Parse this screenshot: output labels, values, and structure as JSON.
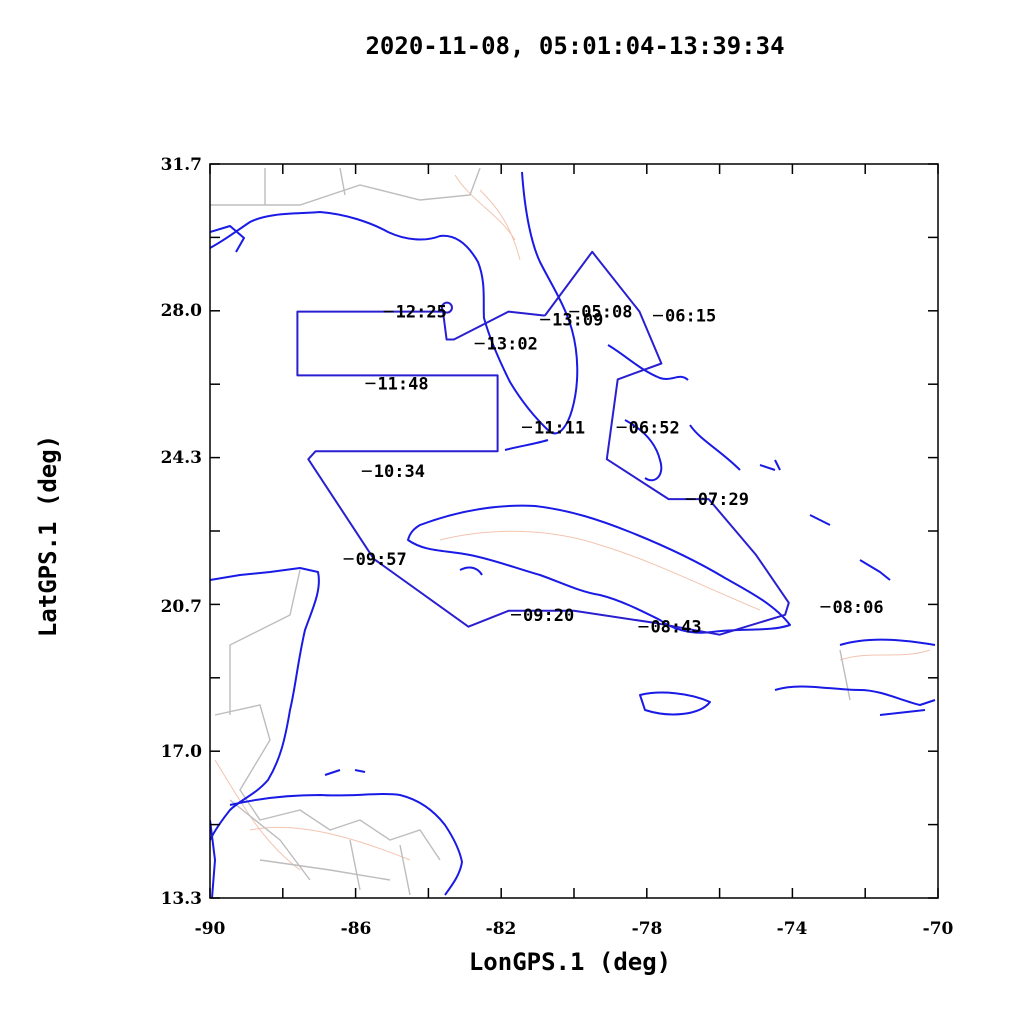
{
  "chart_data": {
    "type": "map-track",
    "title": "2020-11-08, 05:01:04-13:39:34",
    "xlabel": "LonGPS.1 (deg)",
    "ylabel": "LatGPS.1 (deg)",
    "xlim": [
      -90,
      -70
    ],
    "ylim": [
      13.3,
      31.7
    ],
    "x_ticks": [
      "-90",
      "-86",
      "-82",
      "-78",
      "-74",
      "-70"
    ],
    "y_ticks": [
      "13.3",
      "17.0",
      "20.7",
      "24.3",
      "28.0",
      "31.7"
    ],
    "colors": {
      "track": "#2a1fd0",
      "coast": "#1a1ae6",
      "borders": "#bdbdbd",
      "contours": "#f2c4b0"
    },
    "track": [
      [
        -80.8,
        27.9
      ],
      [
        -79.5,
        29.5
      ],
      [
        -78.2,
        28.0
      ],
      [
        -77.6,
        26.7
      ],
      [
        -78.8,
        26.3
      ],
      [
        -79.1,
        24.3
      ],
      [
        -77.4,
        23.3
      ],
      [
        -76.3,
        23.3
      ],
      [
        -75.0,
        21.9
      ],
      [
        -74.1,
        20.7
      ],
      [
        -74.2,
        20.4
      ],
      [
        -76.0,
        19.9
      ],
      [
        -77.8,
        20.2
      ],
      [
        -80.0,
        20.5
      ],
      [
        -81.8,
        20.5
      ],
      [
        -82.9,
        20.1
      ],
      [
        -85.5,
        21.8
      ],
      [
        -87.3,
        24.3
      ],
      [
        -87.1,
        24.5
      ],
      [
        -82.1,
        24.5
      ],
      [
        -82.1,
        26.4
      ],
      [
        -87.6,
        26.4
      ],
      [
        -87.6,
        28.0
      ],
      [
        -83.6,
        28.0
      ],
      [
        -83.5,
        27.3
      ],
      [
        -83.3,
        27.3
      ],
      [
        -81.8,
        28.0
      ],
      [
        -80.8,
        27.9
      ]
    ],
    "loop": [
      -83.6,
      28.0
    ],
    "time_labels": [
      {
        "text": "05:08",
        "lon": -79.8,
        "lat": 28.0
      },
      {
        "text": "13:09",
        "lon": -80.6,
        "lat": 27.8
      },
      {
        "text": "06:15",
        "lon": -77.5,
        "lat": 27.9
      },
      {
        "text": "13:02",
        "lon": -82.4,
        "lat": 27.2
      },
      {
        "text": "12:25",
        "lon": -84.9,
        "lat": 28.0
      },
      {
        "text": "11:48",
        "lon": -85.4,
        "lat": 26.2
      },
      {
        "text": "11:11",
        "lon": -81.1,
        "lat": 25.1
      },
      {
        "text": "06:52",
        "lon": -78.5,
        "lat": 25.1
      },
      {
        "text": "10:34",
        "lon": -85.5,
        "lat": 24.0
      },
      {
        "text": "07:29",
        "lon": -76.6,
        "lat": 23.3
      },
      {
        "text": "09:57",
        "lon": -86.0,
        "lat": 21.8
      },
      {
        "text": "08:06",
        "lon": -72.9,
        "lat": 20.6
      },
      {
        "text": "09:20",
        "lon": -81.4,
        "lat": 20.4
      },
      {
        "text": "08:43",
        "lon": -77.9,
        "lat": 20.1
      }
    ]
  }
}
